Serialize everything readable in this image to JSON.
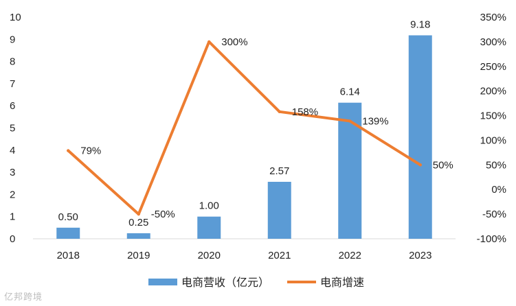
{
  "chart_data": {
    "type": "bar",
    "categories": [
      "2018",
      "2019",
      "2020",
      "2021",
      "2022",
      "2023"
    ],
    "series": [
      {
        "name": "电商营收（亿元）",
        "kind": "bar",
        "axis": "left",
        "color": "#5B9BD5",
        "values": [
          0.5,
          0.25,
          1.0,
          2.57,
          6.14,
          9.18
        ],
        "labels": [
          "0.50",
          "0.25",
          "1.00",
          "2.57",
          "6.14",
          "9.18"
        ]
      },
      {
        "name": "电商增速",
        "kind": "line",
        "axis": "right",
        "color": "#ED7D31",
        "values": [
          79,
          -50,
          300,
          158,
          139,
          50
        ],
        "labels": [
          "79%",
          "-50%",
          "300%",
          "158%",
          "139%",
          "50%"
        ]
      }
    ],
    "y_left": {
      "ylim": [
        0,
        10
      ],
      "ticks": [
        "0",
        "1",
        "2",
        "3",
        "4",
        "5",
        "6",
        "7",
        "8",
        "9",
        "10"
      ]
    },
    "y_right": {
      "ylim": [
        -100,
        350
      ],
      "ticks": [
        "-100%",
        "-50%",
        "0%",
        "50%",
        "100%",
        "150%",
        "200%",
        "250%",
        "300%",
        "350%"
      ]
    },
    "grid": false,
    "legend": "bottom"
  },
  "watermark": "亿邦跨境"
}
